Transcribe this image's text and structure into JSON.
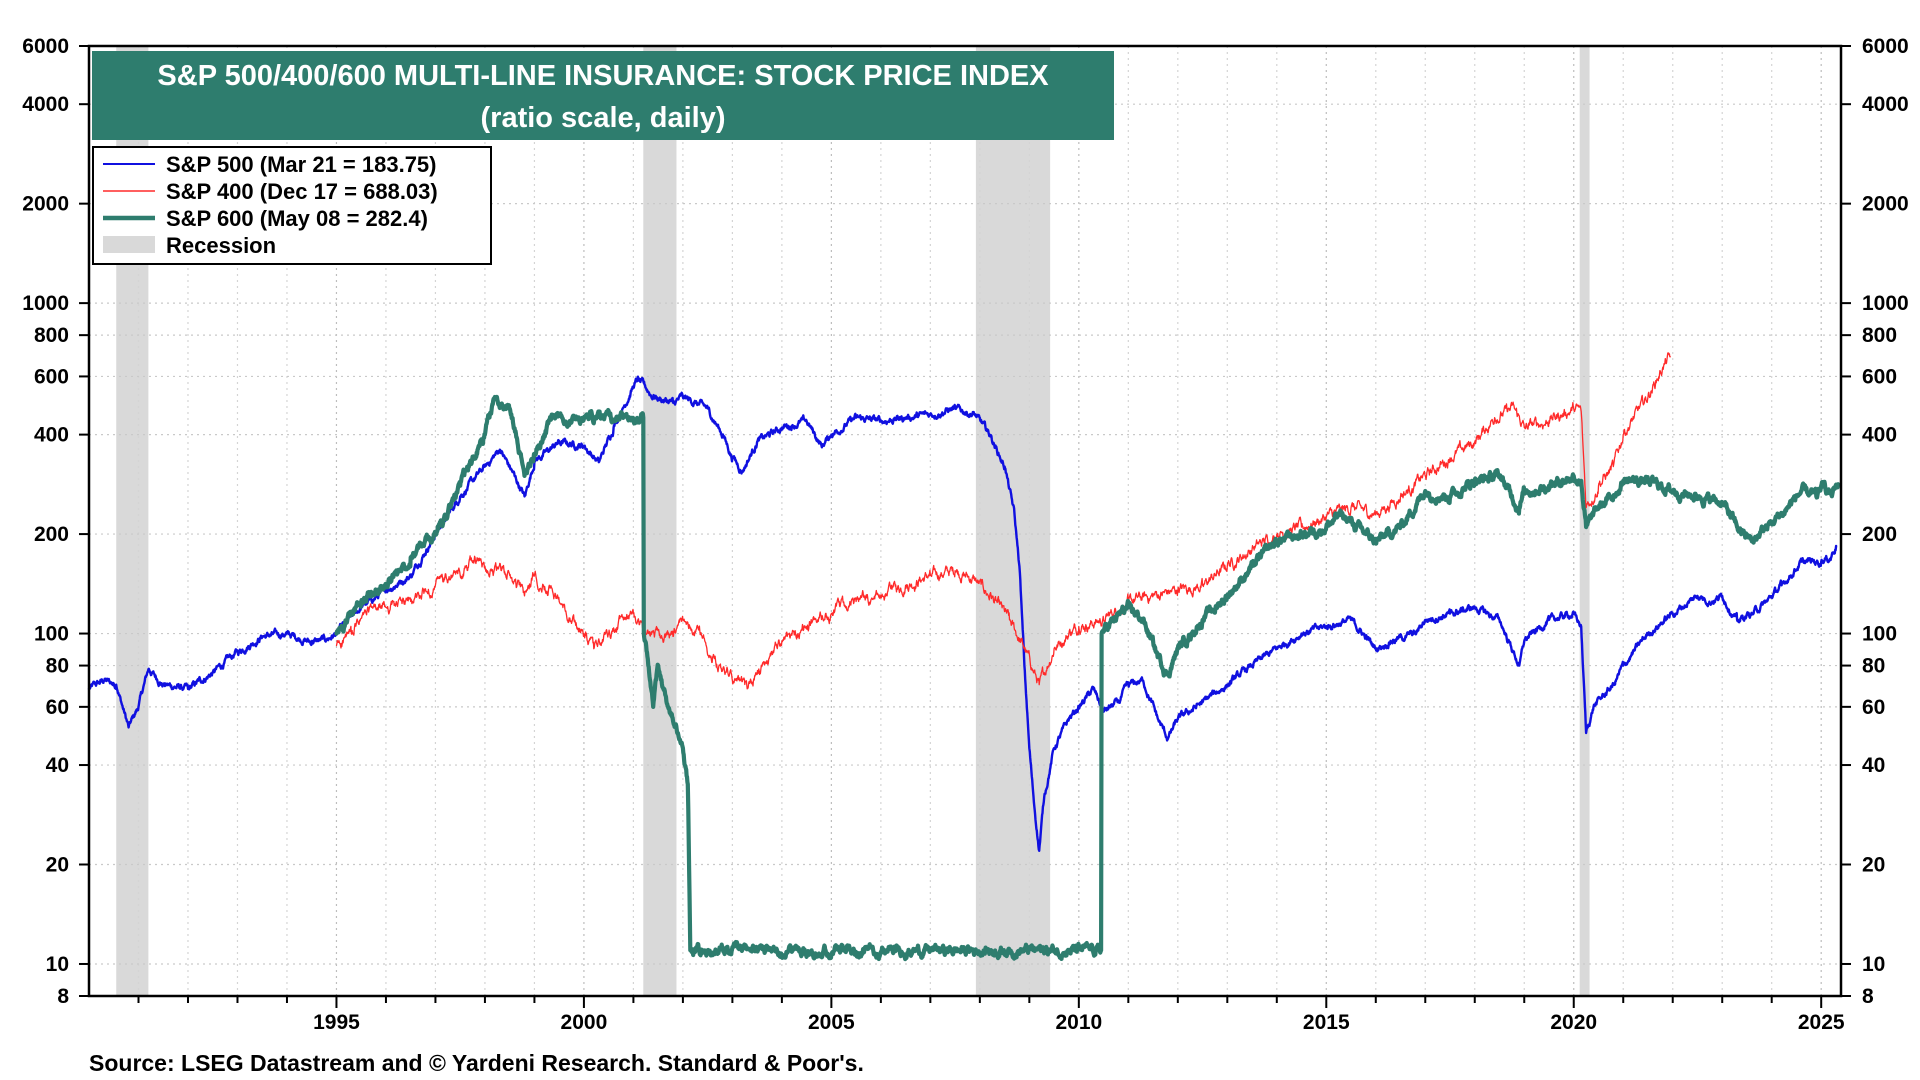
{
  "chart_data": {
    "type": "line",
    "title": "S&P 500/400/600 MULTI-LINE INSURANCE: STOCK PRICE INDEX",
    "subtitle": "(ratio scale, daily)",
    "source": "Source: LSEG Datastream and © Yardeni Research. Standard & Poor's.",
    "x_axis": {
      "range": [
        1990.0,
        2025.4
      ],
      "ticks": [
        "1995",
        "2000",
        "2005",
        "2010",
        "2015",
        "2020",
        "2025"
      ]
    },
    "y_axis": {
      "scale": "log",
      "range": [
        8,
        6000
      ],
      "ticks": [
        "8",
        "10",
        "20",
        "40",
        "60",
        "80",
        "100",
        "200",
        "400",
        "600",
        "800",
        "1000",
        "2000",
        "4000",
        "6000"
      ]
    },
    "recessions": [
      {
        "start": 1990.55,
        "end": 1991.2
      },
      {
        "start": 2001.2,
        "end": 2001.87
      },
      {
        "start": 2007.92,
        "end": 2009.42
      },
      {
        "start": 2020.12,
        "end": 2020.32
      }
    ],
    "legend": [
      {
        "label": "S&P 500 (Mar 21 = 183.75)",
        "color": "#1010e0",
        "kind": "line"
      },
      {
        "label": "S&P 400 (Dec 17 = 688.03)",
        "color": "#ff2a2a",
        "kind": "line"
      },
      {
        "label": "S&P 600 (May 08 = 282.4)",
        "color": "#2e7d6e",
        "kind": "line"
      },
      {
        "label": "Recession",
        "color": "#d9d9d9",
        "kind": "band"
      }
    ],
    "series": [
      {
        "name": "S&P 500",
        "color": "#1010e0",
        "width": 2.4,
        "noise": 0.03,
        "points": [
          [
            1990.0,
            68
          ],
          [
            1990.3,
            72
          ],
          [
            1990.55,
            70
          ],
          [
            1990.8,
            52
          ],
          [
            1991.0,
            60
          ],
          [
            1991.2,
            78
          ],
          [
            1991.5,
            70
          ],
          [
            1992.0,
            68
          ],
          [
            1992.5,
            76
          ],
          [
            1993.0,
            88
          ],
          [
            1993.5,
            98
          ],
          [
            1994.0,
            100
          ],
          [
            1994.5,
            94
          ],
          [
            1994.8,
            96
          ],
          [
            1995.0,
            100
          ],
          [
            1995.5,
            120
          ],
          [
            1996.0,
            135
          ],
          [
            1996.5,
            150
          ],
          [
            1997.0,
            200
          ],
          [
            1997.5,
            260
          ],
          [
            1998.0,
            320
          ],
          [
            1998.3,
            360
          ],
          [
            1998.6,
            300
          ],
          [
            1998.8,
            260
          ],
          [
            1999.0,
            330
          ],
          [
            1999.5,
            380
          ],
          [
            2000.0,
            370
          ],
          [
            2000.3,
            330
          ],
          [
            2000.6,
            420
          ],
          [
            2001.0,
            560
          ],
          [
            2001.1,
            590
          ],
          [
            2001.4,
            520
          ],
          [
            2001.8,
            500
          ],
          [
            2002.0,
            520
          ],
          [
            2002.5,
            480
          ],
          [
            2002.8,
            400
          ],
          [
            2003.0,
            340
          ],
          [
            2003.2,
            310
          ],
          [
            2003.5,
            380
          ],
          [
            2004.0,
            420
          ],
          [
            2004.5,
            440
          ],
          [
            2004.8,
            370
          ],
          [
            2005.0,
            400
          ],
          [
            2005.5,
            450
          ],
          [
            2006.0,
            440
          ],
          [
            2006.5,
            450
          ],
          [
            2007.0,
            460
          ],
          [
            2007.5,
            480
          ],
          [
            2007.9,
            460
          ],
          [
            2008.2,
            400
          ],
          [
            2008.5,
            320
          ],
          [
            2008.7,
            230
          ],
          [
            2008.8,
            160
          ],
          [
            2008.9,
            80
          ],
          [
            2009.0,
            45
          ],
          [
            2009.1,
            30
          ],
          [
            2009.2,
            22
          ],
          [
            2009.3,
            32
          ],
          [
            2009.5,
            45
          ],
          [
            2009.8,
            55
          ],
          [
            2010.0,
            60
          ],
          [
            2010.3,
            68
          ],
          [
            2010.5,
            58
          ],
          [
            2010.8,
            62
          ],
          [
            2011.0,
            70
          ],
          [
            2011.3,
            72
          ],
          [
            2011.6,
            55
          ],
          [
            2011.8,
            48
          ],
          [
            2012.0,
            55
          ],
          [
            2012.5,
            62
          ],
          [
            2013.0,
            70
          ],
          [
            2013.5,
            80
          ],
          [
            2014.0,
            90
          ],
          [
            2014.5,
            100
          ],
          [
            2015.0,
            105
          ],
          [
            2015.5,
            110
          ],
          [
            2016.0,
            90
          ],
          [
            2016.3,
            95
          ],
          [
            2016.8,
            100
          ],
          [
            2017.0,
            110
          ],
          [
            2017.5,
            115
          ],
          [
            2018.0,
            120
          ],
          [
            2018.5,
            110
          ],
          [
            2018.9,
            80
          ],
          [
            2019.0,
            95
          ],
          [
            2019.5,
            110
          ],
          [
            2020.0,
            115
          ],
          [
            2020.15,
            105
          ],
          [
            2020.25,
            50
          ],
          [
            2020.4,
            60
          ],
          [
            2020.8,
            70
          ],
          [
            2021.0,
            80
          ],
          [
            2021.5,
            100
          ],
          [
            2022.0,
            115
          ],
          [
            2022.5,
            130
          ],
          [
            2022.8,
            125
          ],
          [
            2023.0,
            130
          ],
          [
            2023.3,
            110
          ],
          [
            2023.6,
            115
          ],
          [
            2023.9,
            125
          ],
          [
            2024.2,
            140
          ],
          [
            2024.6,
            165
          ],
          [
            2025.0,
            165
          ],
          [
            2025.2,
            170
          ],
          [
            2025.3,
            184
          ]
        ]
      },
      {
        "name": "S&P 400",
        "color": "#ff2a2a",
        "width": 1.3,
        "noise": 0.05,
        "points": [
          [
            1995.0,
            92
          ],
          [
            1995.3,
            100
          ],
          [
            1995.6,
            115
          ],
          [
            1996.0,
            120
          ],
          [
            1996.5,
            125
          ],
          [
            1997.0,
            140
          ],
          [
            1997.5,
            150
          ],
          [
            1997.8,
            170
          ],
          [
            1998.0,
            160
          ],
          [
            1998.5,
            150
          ],
          [
            1998.8,
            130
          ],
          [
            1999.0,
            150
          ],
          [
            1999.3,
            140
          ],
          [
            1999.5,
            125
          ],
          [
            1999.8,
            110
          ],
          [
            2000.0,
            100
          ],
          [
            2000.2,
            90
          ],
          [
            2000.5,
            100
          ],
          [
            2000.8,
            110
          ],
          [
            2001.0,
            115
          ],
          [
            2001.3,
            100
          ],
          [
            2001.8,
            98
          ],
          [
            2002.0,
            110
          ],
          [
            2002.3,
            105
          ],
          [
            2002.6,
            85
          ],
          [
            2003.0,
            72
          ],
          [
            2003.3,
            68
          ],
          [
            2003.6,
            80
          ],
          [
            2004.0,
            95
          ],
          [
            2004.5,
            105
          ],
          [
            2005.0,
            115
          ],
          [
            2005.5,
            125
          ],
          [
            2006.0,
            130
          ],
          [
            2006.5,
            140
          ],
          [
            2007.0,
            150
          ],
          [
            2007.5,
            155
          ],
          [
            2007.9,
            145
          ],
          [
            2008.2,
            130
          ],
          [
            2008.6,
            110
          ],
          [
            2008.9,
            90
          ],
          [
            2009.2,
            70
          ],
          [
            2009.5,
            90
          ],
          [
            2009.8,
            100
          ],
          [
            2010.0,
            105
          ],
          [
            2010.5,
            110
          ],
          [
            2011.0,
            125
          ],
          [
            2011.5,
            130
          ],
          [
            2012.0,
            135
          ],
          [
            2012.5,
            140
          ],
          [
            2013.0,
            160
          ],
          [
            2013.5,
            180
          ],
          [
            2014.0,
            200
          ],
          [
            2014.5,
            210
          ],
          [
            2015.0,
            225
          ],
          [
            2015.5,
            240
          ],
          [
            2016.0,
            230
          ],
          [
            2016.5,
            260
          ],
          [
            2017.0,
            300
          ],
          [
            2017.5,
            340
          ],
          [
            2018.0,
            380
          ],
          [
            2018.4,
            450
          ],
          [
            2018.8,
            480
          ],
          [
            2019.0,
            420
          ],
          [
            2019.5,
            440
          ],
          [
            2020.0,
            480
          ],
          [
            2020.15,
            470
          ],
          [
            2020.25,
            240
          ],
          [
            2020.5,
            280
          ],
          [
            2020.8,
            320
          ],
          [
            2021.0,
            400
          ],
          [
            2021.5,
            520
          ],
          [
            2021.8,
            640
          ],
          [
            2021.95,
            688
          ]
        ]
      },
      {
        "name": "S&P 600",
        "color": "#2e7d6e",
        "width": 4.2,
        "noise": 0.04,
        "points": [
          [
            1995.0,
            100
          ],
          [
            1995.5,
            125
          ],
          [
            1996.0,
            140
          ],
          [
            1996.5,
            170
          ],
          [
            1997.0,
            200
          ],
          [
            1997.5,
            280
          ],
          [
            1998.0,
            400
          ],
          [
            1998.2,
            520
          ],
          [
            1998.5,
            480
          ],
          [
            1998.8,
            300
          ],
          [
            1999.0,
            350
          ],
          [
            1999.2,
            400
          ],
          [
            1999.4,
            450
          ],
          [
            2001.2,
            450
          ],
          [
            2001.21,
            100
          ],
          [
            2001.3,
            80
          ],
          [
            2001.4,
            60
          ],
          [
            2001.5,
            80
          ],
          [
            2001.7,
            60
          ],
          [
            2001.9,
            50
          ],
          [
            2002.0,
            45
          ],
          [
            2002.1,
            35
          ],
          [
            2002.15,
            11
          ],
          [
            2010.45,
            11
          ],
          [
            2010.46,
            100
          ],
          [
            2010.7,
            110
          ],
          [
            2011.0,
            120
          ],
          [
            2011.3,
            110
          ],
          [
            2011.6,
            85
          ],
          [
            2011.8,
            75
          ],
          [
            2012.0,
            90
          ],
          [
            2012.5,
            110
          ],
          [
            2013.0,
            130
          ],
          [
            2013.5,
            160
          ],
          [
            2014.0,
            190
          ],
          [
            2014.5,
            200
          ],
          [
            2015.0,
            210
          ],
          [
            2015.3,
            230
          ],
          [
            2015.8,
            200
          ],
          [
            2016.0,
            190
          ],
          [
            2016.5,
            210
          ],
          [
            2017.0,
            270
          ],
          [
            2017.5,
            260
          ],
          [
            2018.0,
            290
          ],
          [
            2018.5,
            300
          ],
          [
            2018.9,
            240
          ],
          [
            2019.0,
            270
          ],
          [
            2019.5,
            280
          ],
          [
            2020.0,
            300
          ],
          [
            2020.15,
            290
          ],
          [
            2020.25,
            210
          ],
          [
            2020.5,
            240
          ],
          [
            2020.8,
            260
          ],
          [
            2021.0,
            290
          ],
          [
            2021.5,
            290
          ],
          [
            2022.0,
            270
          ],
          [
            2022.5,
            260
          ],
          [
            2023.0,
            250
          ],
          [
            2023.3,
            210
          ],
          [
            2023.6,
            190
          ],
          [
            2023.9,
            210
          ],
          [
            2024.2,
            230
          ],
          [
            2024.6,
            270
          ],
          [
            2024.9,
            260
          ],
          [
            2025.0,
            280
          ],
          [
            2025.2,
            265
          ],
          [
            2025.35,
            282
          ]
        ]
      }
    ]
  }
}
